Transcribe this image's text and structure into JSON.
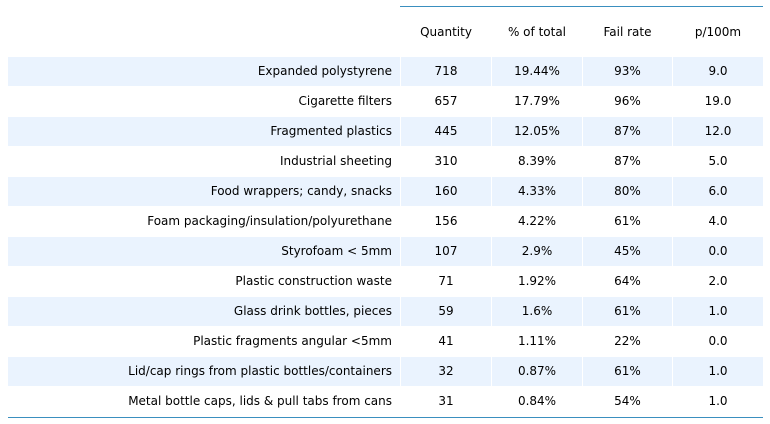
{
  "chart_data": {
    "type": "table",
    "columns": [
      "Quantity",
      "% of total",
      "Fail rate",
      "p/100m"
    ],
    "rows": [
      {
        "label": "Expanded polystyrene",
        "values": [
          "718",
          "19.44%",
          "93%",
          "9.0"
        ]
      },
      {
        "label": "Cigarette filters",
        "values": [
          "657",
          "17.79%",
          "96%",
          "19.0"
        ]
      },
      {
        "label": "Fragmented plastics",
        "values": [
          "445",
          "12.05%",
          "87%",
          "12.0"
        ]
      },
      {
        "label": "Industrial sheeting",
        "values": [
          "310",
          "8.39%",
          "87%",
          "5.0"
        ]
      },
      {
        "label": "Food wrappers; candy, snacks",
        "values": [
          "160",
          "4.33%",
          "80%",
          "6.0"
        ]
      },
      {
        "label": "Foam packaging/insulation/polyurethane",
        "values": [
          "156",
          "4.22%",
          "61%",
          "4.0"
        ]
      },
      {
        "label": "Styrofoam < 5mm",
        "values": [
          "107",
          "2.9%",
          "45%",
          "0.0"
        ]
      },
      {
        "label": "Plastic construction waste",
        "values": [
          "71",
          "1.92%",
          "64%",
          "2.0"
        ]
      },
      {
        "label": "Glass drink bottles, pieces",
        "values": [
          "59",
          "1.6%",
          "61%",
          "1.0"
        ]
      },
      {
        "label": "Plastic fragments angular <5mm",
        "values": [
          "41",
          "1.11%",
          "22%",
          "0.0"
        ]
      },
      {
        "label": "Lid/cap rings from plastic bottles/containers",
        "values": [
          "32",
          "0.87%",
          "61%",
          "1.0"
        ]
      },
      {
        "label": "Metal bottle caps, lids & pull tabs from cans",
        "values": [
          "31",
          "0.84%",
          "54%",
          "1.0"
        ]
      }
    ],
    "colors": {
      "shaded_row": "#eaf3fe",
      "rule": "#3a8fbf"
    }
  }
}
